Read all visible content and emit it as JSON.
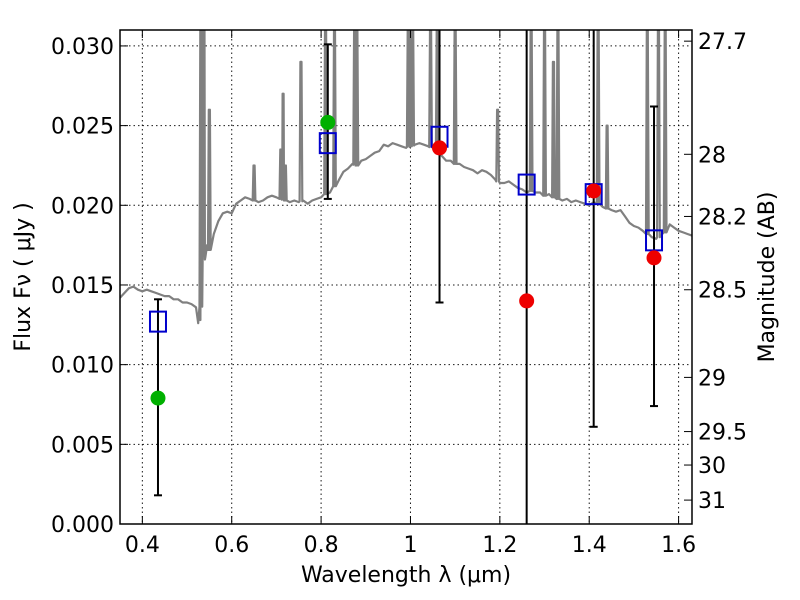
{
  "chart_data": {
    "type": "scatter",
    "title": "",
    "xlabel": "Wavelength  λ (μm)",
    "ylabel": "Flux  Fν  ( μJy )",
    "y2label": "Magnitude (AB)",
    "xlim": [
      0.35,
      1.63
    ],
    "ylim": [
      0.0,
      0.031
    ],
    "grid": true,
    "legend": "none",
    "x_ticks": [
      0.4,
      0.6,
      0.8,
      1.0,
      1.2,
      1.4,
      1.6
    ],
    "x_tick_labels": [
      "0.4",
      "0.6",
      "0.8",
      "1",
      "1.2",
      "1.4",
      "1.6"
    ],
    "y_ticks": [
      0.0,
      0.005,
      0.01,
      0.015,
      0.02,
      0.025,
      0.03
    ],
    "y_tick_labels": [
      "0.000",
      "0.005",
      "0.010",
      "0.015",
      "0.020",
      "0.025",
      "0.030"
    ],
    "y2_tick_labels": [
      "27.7",
      "28",
      "28.2",
      "28.5",
      "29",
      "29.5",
      "30",
      "31"
    ],
    "y2_tick_flux": [
      0.0303,
      0.0232,
      0.0193,
      0.0147,
      0.0092,
      0.0058,
      0.0037,
      0.0015
    ],
    "sed_model": {
      "color": "#808080",
      "x": [
        0.35,
        0.36,
        0.37,
        0.38,
        0.39,
        0.4,
        0.41,
        0.42,
        0.43,
        0.44,
        0.45,
        0.46,
        0.47,
        0.48,
        0.49,
        0.5,
        0.51,
        0.52,
        0.525,
        0.53,
        0.535,
        0.54,
        0.545,
        0.55,
        0.56,
        0.57,
        0.58,
        0.59,
        0.6,
        0.61,
        0.62,
        0.63,
        0.64,
        0.65,
        0.66,
        0.67,
        0.68,
        0.69,
        0.7,
        0.71,
        0.72,
        0.73,
        0.74,
        0.75,
        0.76,
        0.77,
        0.78,
        0.79,
        0.8,
        0.81,
        0.82,
        0.83,
        0.84,
        0.85,
        0.86,
        0.87,
        0.88,
        0.89,
        0.9,
        0.91,
        0.92,
        0.93,
        0.94,
        0.95,
        0.96,
        0.97,
        0.98,
        0.99,
        1.0,
        1.01,
        1.02,
        1.03,
        1.04,
        1.05,
        1.06,
        1.07,
        1.08,
        1.09,
        1.1,
        1.11,
        1.12,
        1.13,
        1.14,
        1.15,
        1.16,
        1.17,
        1.18,
        1.19,
        1.2,
        1.21,
        1.22,
        1.23,
        1.24,
        1.25,
        1.26,
        1.27,
        1.28,
        1.29,
        1.3,
        1.31,
        1.32,
        1.33,
        1.34,
        1.35,
        1.36,
        1.37,
        1.38,
        1.39,
        1.4,
        1.41,
        1.42,
        1.43,
        1.44,
        1.45,
        1.46,
        1.47,
        1.48,
        1.49,
        1.5,
        1.51,
        1.52,
        1.53,
        1.54,
        1.55,
        1.56,
        1.57,
        1.58,
        1.59,
        1.6,
        1.61,
        1.62,
        1.63
      ],
      "y": [
        0.0142,
        0.0145,
        0.0148,
        0.0149,
        0.0147,
        0.0146,
        0.0147,
        0.0146,
        0.0145,
        0.0144,
        0.0143,
        0.0143,
        0.0141,
        0.0141,
        0.0139,
        0.0139,
        0.0138,
        0.0136,
        0.0126,
        0.0128,
        0.017,
        0.0166,
        0.0175,
        0.0172,
        0.0182,
        0.019,
        0.0195,
        0.0196,
        0.0195,
        0.0201,
        0.0203,
        0.0205,
        0.0204,
        0.0203,
        0.0202,
        0.0203,
        0.0205,
        0.0206,
        0.0205,
        0.0204,
        0.0203,
        0.0202,
        0.0203,
        0.0202,
        0.0203,
        0.0201,
        0.0203,
        0.0204,
        0.0205,
        0.0207,
        0.0208,
        0.0212,
        0.0216,
        0.0221,
        0.0223,
        0.0226,
        0.0225,
        0.0228,
        0.0229,
        0.0231,
        0.0233,
        0.0234,
        0.0238,
        0.0237,
        0.0239,
        0.0238,
        0.0237,
        0.0236,
        0.0237,
        0.0238,
        0.0239,
        0.0238,
        0.0237,
        0.0236,
        0.0233,
        0.0231,
        0.0228,
        0.0228,
        0.0226,
        0.0226,
        0.0224,
        0.0223,
        0.0222,
        0.022,
        0.0222,
        0.0221,
        0.0219,
        0.0216,
        0.0214,
        0.0214,
        0.0215,
        0.0213,
        0.0211,
        0.021,
        0.0208,
        0.0209,
        0.0208,
        0.0208,
        0.0206,
        0.0207,
        0.0205,
        0.0204,
        0.0203,
        0.0204,
        0.0202,
        0.0203,
        0.0202,
        0.0201,
        0.02,
        0.0202,
        0.0201,
        0.0199,
        0.0198,
        0.0197,
        0.0196,
        0.0197,
        0.0193,
        0.0189,
        0.0187,
        0.0186,
        0.0184,
        0.0182,
        0.018,
        0.0179,
        0.0181,
        0.0183,
        0.0188,
        0.0186,
        0.0184,
        0.0183,
        0.0182,
        0.0181
      ],
      "emission_lines": [
        {
          "x": 0.531,
          "peak": 0.031
        },
        {
          "x": 0.538,
          "peak": 0.031
        },
        {
          "x": 0.55,
          "peak": 0.026
        },
        {
          "x": 0.65,
          "peak": 0.0225
        },
        {
          "x": 0.71,
          "peak": 0.0235
        },
        {
          "x": 0.715,
          "peak": 0.027
        },
        {
          "x": 0.72,
          "peak": 0.0225
        },
        {
          "x": 0.755,
          "peak": 0.029
        },
        {
          "x": 0.81,
          "peak": 0.031
        },
        {
          "x": 0.83,
          "peak": 0.031
        },
        {
          "x": 0.875,
          "peak": 0.031
        },
        {
          "x": 0.88,
          "peak": 0.031
        },
        {
          "x": 0.995,
          "peak": 0.031
        },
        {
          "x": 1.0,
          "peak": 0.031
        },
        {
          "x": 1.005,
          "peak": 0.031
        },
        {
          "x": 1.045,
          "peak": 0.031
        },
        {
          "x": 1.06,
          "peak": 0.031
        },
        {
          "x": 1.1,
          "peak": 0.031
        },
        {
          "x": 1.195,
          "peak": 0.026
        },
        {
          "x": 1.27,
          "peak": 0.031
        },
        {
          "x": 1.3,
          "peak": 0.031
        },
        {
          "x": 1.32,
          "peak": 0.029
        },
        {
          "x": 1.33,
          "peak": 0.031
        },
        {
          "x": 1.42,
          "peak": 0.031
        },
        {
          "x": 1.44,
          "peak": 0.025
        },
        {
          "x": 1.53,
          "peak": 0.031
        },
        {
          "x": 1.555,
          "peak": 0.031
        },
        {
          "x": 1.57,
          "peak": 0.031
        }
      ]
    },
    "model_photometry": {
      "color": "#0000cc",
      "marker": "open-square",
      "x": [
        0.435,
        0.815,
        1.065,
        1.26,
        1.41,
        1.545
      ],
      "y": [
        0.0127,
        0.0239,
        0.0243,
        0.0213,
        0.0207,
        0.0178
      ]
    },
    "observed_photometry": {
      "marker": "filled-circle",
      "points": [
        {
          "x": 0.435,
          "y": 0.0079,
          "yerr_lo": 0.0018,
          "yerr_hi": 0.0141,
          "color": "#00b000"
        },
        {
          "x": 0.815,
          "y": 0.0252,
          "yerr_lo": 0.0204,
          "yerr_hi": 0.0301,
          "color": "#00b000"
        },
        {
          "x": 1.065,
          "y": 0.0236,
          "yerr_lo": 0.0139,
          "yerr_hi": 0.031,
          "color": "#ee0000"
        },
        {
          "x": 1.26,
          "y": 0.014,
          "yerr_lo": 0.0,
          "yerr_hi": 0.031,
          "color": "#ee0000"
        },
        {
          "x": 1.41,
          "y": 0.0209,
          "yerr_lo": 0.0061,
          "yerr_hi": 0.031,
          "color": "#ee0000"
        },
        {
          "x": 1.545,
          "y": 0.0167,
          "yerr_lo": 0.0074,
          "yerr_hi": 0.0262,
          "color": "#ee0000"
        }
      ]
    }
  }
}
